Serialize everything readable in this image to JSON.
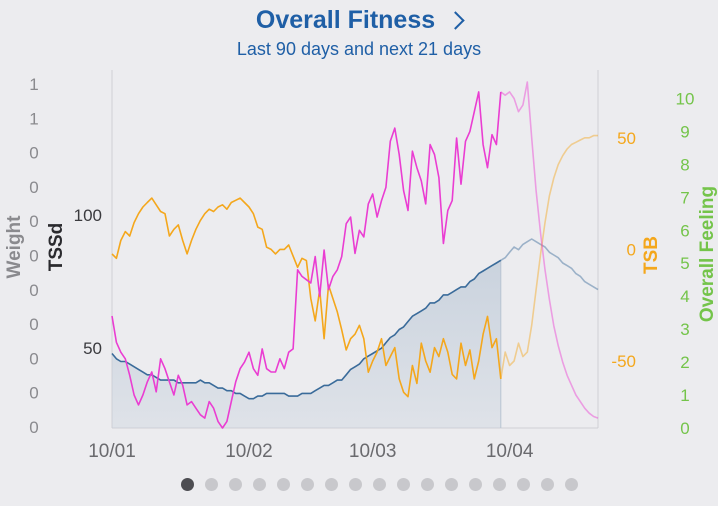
{
  "header": {
    "title": "Overall Fitness",
    "subtitle": "Last 90 days and next 21 days"
  },
  "colors": {
    "background": "#ececef",
    "title": "#1f5fa6",
    "fitness_line": "#3a6b9a",
    "fitness_fill": "#c6d0dc",
    "tsb": "#f4a71c",
    "tssd": "#ea3dd2",
    "overall_feeling": "#74c44a",
    "weight_axis": "#8a8a8e",
    "grid": "#cfcfd4"
  },
  "chart_data": {
    "type": "line",
    "title": "Overall Fitness",
    "subtitle": "Last 90 days and next 21 days",
    "x_ticks": [
      "10/01",
      "10/02",
      "10/03",
      "10/04"
    ],
    "x_tick_day": [
      1,
      32,
      60,
      91
    ],
    "x_range_day": [
      1,
      111
    ],
    "today_day": 89,
    "axes": {
      "weight": {
        "label": "Weight",
        "ticks": [
          "1",
          "1",
          "0",
          "0",
          "0",
          "0",
          "0",
          "0",
          "0",
          "0",
          "0"
        ]
      },
      "tssd": {
        "label": "TSSd",
        "ticks": [
          "100",
          "50"
        ],
        "tick_values": [
          100,
          50
        ],
        "range": [
          20,
          150
        ]
      },
      "tsb": {
        "label": "TSB",
        "ticks": [
          "50",
          "0",
          "-50"
        ],
        "tick_values": [
          50,
          0,
          -50
        ],
        "range": [
          -80,
          75
        ]
      },
      "overall_feeling": {
        "label": "Overall Feeling",
        "ticks": [
          "10",
          "9",
          "8",
          "7",
          "6",
          "5",
          "4",
          "3",
          "2",
          "1",
          "0"
        ],
        "range": [
          0,
          10.5
        ]
      }
    },
    "series": [
      {
        "name": "TSSd",
        "axis": "tssd",
        "x": [
          1,
          2,
          3,
          4,
          5,
          7,
          8,
          9,
          10,
          12,
          13,
          14,
          15,
          16,
          17,
          18,
          19,
          20,
          21,
          22,
          23,
          24,
          25,
          26,
          27,
          28,
          29,
          30,
          31,
          32,
          33,
          34,
          35,
          36,
          37,
          38,
          39,
          40,
          41,
          42,
          43,
          44,
          45,
          46,
          47,
          48,
          49,
          50,
          51,
          52,
          53,
          54,
          55,
          56,
          57,
          58,
          59,
          60,
          61,
          62,
          63,
          64,
          65,
          66,
          67,
          68,
          69,
          70,
          71,
          72,
          73,
          74,
          75,
          76,
          77,
          78,
          79,
          80,
          81,
          82,
          83,
          84,
          85,
          86,
          87,
          88,
          89
        ],
        "y": [
          48,
          46,
          45,
          45,
          44,
          42,
          41,
          40,
          40,
          38,
          38,
          38,
          38,
          37,
          37,
          37,
          37,
          37,
          38,
          37,
          37,
          36,
          35,
          35,
          34,
          34,
          33,
          33,
          32,
          31,
          31,
          32,
          32,
          33,
          33,
          33,
          33,
          33,
          32,
          32,
          32,
          33,
          33,
          33,
          34,
          35,
          36,
          36,
          37,
          38,
          38,
          40,
          42,
          43,
          44,
          46,
          47,
          48,
          49,
          50,
          52,
          54,
          55,
          57,
          58,
          60,
          62,
          63,
          64,
          65,
          67,
          67,
          68,
          70,
          70,
          71,
          72,
          73,
          73,
          75,
          76,
          78,
          79,
          80,
          81,
          82,
          83
        ]
      },
      {
        "name": "TSSd forecast",
        "axis": "tssd",
        "x": [
          89,
          90,
          91,
          92,
          93,
          94,
          95,
          96,
          97,
          98,
          99,
          100,
          101,
          102,
          103,
          104,
          105,
          106,
          107,
          108,
          109,
          110,
          111
        ],
        "y": [
          83,
          84,
          86,
          88,
          87,
          89,
          90,
          91,
          90,
          89,
          88,
          86,
          85,
          84,
          82,
          81,
          80,
          78,
          77,
          75,
          74,
          73,
          72
        ]
      },
      {
        "name": "TSB",
        "axis": "tsb",
        "x": [
          1,
          2,
          3,
          4,
          5,
          6,
          7,
          8,
          9,
          10,
          11,
          12,
          13,
          14,
          15,
          16,
          17,
          18,
          19,
          20,
          21,
          22,
          23,
          24,
          25,
          26,
          27,
          28,
          29,
          30,
          31,
          32,
          33,
          34,
          35,
          36,
          37,
          38,
          39,
          40,
          41,
          42,
          43,
          44,
          45,
          46,
          47,
          48,
          49,
          50,
          51,
          52,
          53,
          54,
          55,
          56,
          57,
          58,
          59,
          60,
          61,
          62,
          63,
          64,
          65,
          66,
          67,
          68,
          69,
          70,
          71,
          72,
          73,
          74,
          75,
          76,
          77,
          78,
          79,
          80,
          81,
          82,
          83,
          84,
          85,
          86,
          87,
          88,
          89
        ],
        "y": [
          -2,
          -4,
          4,
          8,
          6,
          12,
          16,
          19,
          21,
          23,
          20,
          17,
          16,
          6,
          9,
          11,
          4,
          -2,
          4,
          9,
          13,
          16,
          18,
          17,
          19,
          20,
          18,
          21,
          22,
          23,
          21,
          19,
          16,
          10,
          9,
          1,
          0,
          -2,
          0,
          0,
          2,
          -3,
          -8,
          -4,
          -5,
          -22,
          -32,
          -18,
          -40,
          -16,
          -22,
          -28,
          -36,
          -45,
          -40,
          -38,
          -34,
          -40,
          -55,
          -50,
          -46,
          -40,
          -52,
          -48,
          -44,
          -58,
          -64,
          -66,
          -52,
          -60,
          -42,
          -50,
          -55,
          -44,
          -48,
          -40,
          -46,
          -56,
          -58,
          -42,
          -52,
          -45,
          -58,
          -50,
          -38,
          -30,
          -44,
          -40,
          -58
        ]
      },
      {
        "name": "TSB forecast",
        "axis": "tsb",
        "x": [
          89,
          90,
          91,
          92,
          93,
          94,
          95,
          96,
          97,
          98,
          99,
          100,
          101,
          102,
          103,
          104,
          105,
          106,
          107,
          108,
          109,
          110,
          111
        ],
        "y": [
          -58,
          -46,
          -52,
          -50,
          -42,
          -48,
          -46,
          -34,
          -18,
          -2,
          12,
          24,
          32,
          38,
          42,
          45,
          47,
          48,
          49,
          50,
          50,
          51,
          51
        ]
      },
      {
        "name": "Overall Feeling",
        "axis": "overall_feeling",
        "x": [
          1,
          2,
          3,
          4,
          5,
          6,
          7,
          8,
          9,
          10,
          11,
          12,
          13,
          14,
          15,
          16,
          17,
          18,
          19,
          20,
          21,
          22,
          23,
          24,
          25,
          26,
          27,
          28,
          29,
          30,
          31,
          32,
          33,
          34,
          35,
          36,
          37,
          38,
          39,
          40,
          41,
          42,
          43,
          44,
          45,
          46,
          47,
          48,
          49,
          50,
          51,
          52,
          53,
          54,
          55,
          56,
          57,
          58,
          59,
          60,
          61,
          62,
          63,
          64,
          65,
          66,
          67,
          68,
          69,
          70,
          71,
          72,
          73,
          74,
          75,
          76,
          77,
          78,
          79,
          80,
          81,
          82,
          83,
          84,
          85,
          86,
          87,
          88,
          89
        ],
        "y": [
          3.4,
          2.6,
          2.3,
          2.1,
          1.6,
          1.0,
          0.7,
          1.0,
          1.4,
          1.7,
          1.1,
          2.1,
          1.8,
          1.4,
          1.0,
          1.6,
          1.3,
          0.7,
          0.8,
          0.6,
          0.4,
          0.3,
          0.8,
          0.6,
          0.2,
          0,
          0.2,
          0.8,
          1.4,
          1.8,
          2.0,
          2.3,
          1.8,
          1.6,
          2.4,
          1.8,
          1.7,
          1.7,
          2.1,
          1.8,
          2.3,
          2.4,
          4.8,
          4.6,
          4.5,
          4.4,
          5.2,
          4.0,
          5.4,
          4.2,
          4.6,
          4.8,
          5.2,
          6.2,
          6.4,
          5.3,
          6.0,
          5.8,
          6.8,
          7.1,
          6.4,
          6.9,
          7.3,
          8.7,
          9.1,
          8.3,
          7.2,
          6.6,
          8.4,
          7.9,
          7.5,
          6.8,
          8.6,
          8.3,
          7.6,
          5.6,
          6.6,
          6.9,
          8.8,
          7.4,
          8.7,
          9.0,
          9.6,
          10.2,
          8.6,
          7.9,
          8.9,
          8.6,
          10.2
        ]
      },
      {
        "name": "Overall Feeling forecast",
        "axis": "overall_feeling",
        "x": [
          89,
          90,
          91,
          92,
          93,
          94,
          95,
          96,
          97,
          98,
          99,
          100,
          101,
          102,
          103,
          104,
          105,
          106,
          107,
          108,
          109,
          110,
          111
        ],
        "y": [
          10.2,
          10.1,
          10.2,
          10.0,
          9.6,
          9.8,
          10.5,
          8.8,
          7.2,
          5.9,
          4.8,
          3.9,
          3.1,
          2.5,
          2.0,
          1.6,
          1.3,
          1.0,
          0.8,
          0.6,
          0.45,
          0.35,
          0.3
        ]
      }
    ]
  }
}
